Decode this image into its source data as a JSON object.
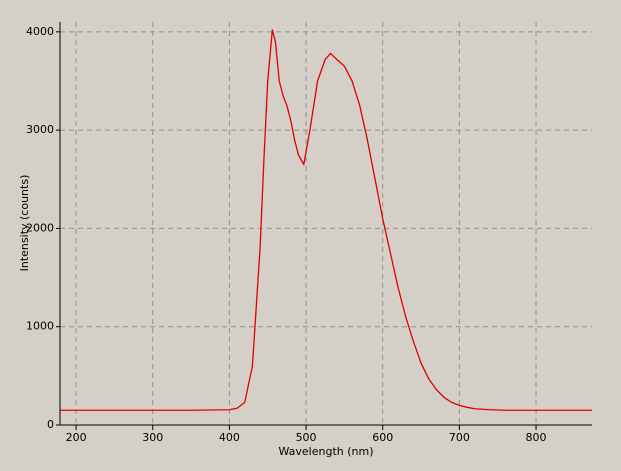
{
  "chart_data": {
    "type": "line",
    "x_label": "Wavelength (nm)",
    "y_label": "Intensity (counts)",
    "x": [
      179,
      250,
      350,
      400,
      410,
      420,
      430,
      440,
      445,
      450,
      456,
      460,
      465,
      470,
      475,
      480,
      485,
      490,
      497,
      505,
      515,
      525,
      532,
      540,
      550,
      560,
      570,
      580,
      590,
      600,
      610,
      620,
      630,
      640,
      650,
      660,
      670,
      680,
      690,
      700,
      710,
      720,
      740,
      760,
      800,
      873
    ],
    "series": [
      {
        "color": "#e00000",
        "values": [
          150,
          150,
          150,
          155,
          170,
          230,
          600,
          1800,
          2700,
          3500,
          4020,
          3900,
          3500,
          3350,
          3250,
          3100,
          2900,
          2750,
          2650,
          3000,
          3500,
          3720,
          3780,
          3720,
          3650,
          3500,
          3250,
          2900,
          2500,
          2100,
          1750,
          1400,
          1100,
          850,
          630,
          470,
          360,
          280,
          230,
          200,
          180,
          165,
          155,
          150,
          150,
          150
        ]
      }
    ],
    "xlim": [
      179,
      873
    ],
    "ylim": [
      0,
      4100
    ],
    "xticks": [
      200,
      300,
      400,
      500,
      600,
      700,
      800
    ],
    "yticks": [
      0,
      1000,
      2000,
      3000,
      4000
    ],
    "grid": true
  }
}
